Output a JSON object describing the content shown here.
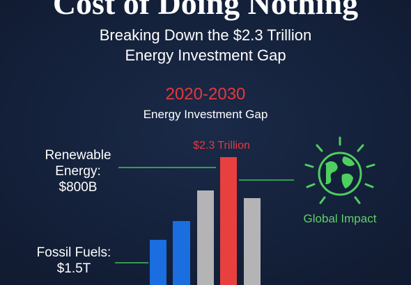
{
  "header": {
    "title": "Cost of Doing Nothing",
    "subtitle_lines": [
      "Breaking Down the $2.3 Trillion",
      "Energy Investment Gap"
    ]
  },
  "gap": {
    "period": "2020-2030",
    "label": "Energy Investment Gap"
  },
  "callouts": {
    "total": "$2.3 Trillion",
    "renewable_lines": [
      "Renewable",
      "Energy:",
      "$800B"
    ],
    "fossil_lines": [
      "Fossil Fuels:",
      "$1.5T"
    ],
    "impact": "Global Impact"
  }
}
